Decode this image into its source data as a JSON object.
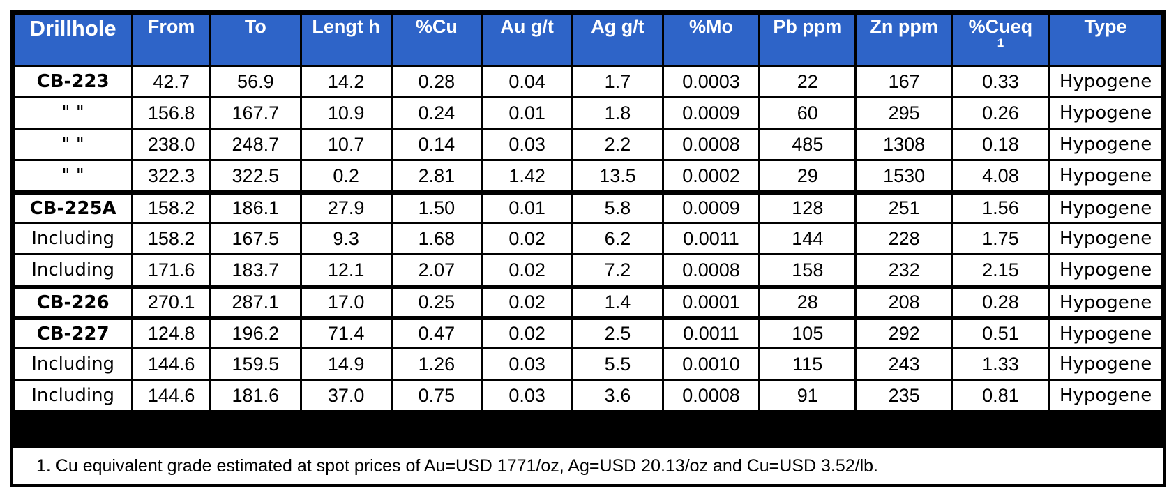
{
  "table": {
    "headers": [
      {
        "label": "Drillhole",
        "sup": ""
      },
      {
        "label": "From",
        "sup": ""
      },
      {
        "label": "To",
        "sup": ""
      },
      {
        "label": "Lengt h",
        "sup": ""
      },
      {
        "label": "%Cu",
        "sup": ""
      },
      {
        "label": "Au g/t",
        "sup": ""
      },
      {
        "label": "Ag g/t",
        "sup": ""
      },
      {
        "label": "%Mo",
        "sup": ""
      },
      {
        "label": "Pb ppm",
        "sup": ""
      },
      {
        "label": "Zn ppm",
        "sup": ""
      },
      {
        "label": "%Cueq",
        "sup": "1"
      },
      {
        "label": "Type",
        "sup": ""
      }
    ],
    "rows": [
      {
        "hole": "CB-223",
        "bold": true,
        "cells": [
          "42.7",
          "56.9",
          "14.2",
          "0.28",
          "0.04",
          "1.7",
          "0.0003",
          "22",
          "167",
          "0.33",
          "Hypogene"
        ]
      },
      {
        "hole": "\" \"",
        "bold": false,
        "cells": [
          "156.8",
          "167.7",
          "10.9",
          "0.24",
          "0.01",
          "1.8",
          "0.0009",
          "60",
          "295",
          "0.26",
          "Hypogene"
        ]
      },
      {
        "hole": "\" \"",
        "bold": false,
        "cells": [
          "238.0",
          "248.7",
          "10.7",
          "0.14",
          "0.03",
          "2.2",
          "0.0008",
          "485",
          "1308",
          "0.18",
          "Hypogene"
        ]
      },
      {
        "hole": "\" \"",
        "bold": false,
        "cells": [
          "322.3",
          "322.5",
          "0.2",
          "2.81",
          "1.42",
          "13.5",
          "0.0002",
          "29",
          "1530",
          "4.08",
          "Hypogene"
        ]
      },
      {
        "hole": "CB-225A",
        "bold": true,
        "cells": [
          "158.2",
          "186.1",
          "27.9",
          "1.50",
          "0.01",
          "5.8",
          "0.0009",
          "128",
          "251",
          "1.56",
          "Hypogene"
        ]
      },
      {
        "hole": "Including",
        "bold": false,
        "cells": [
          "158.2",
          "167.5",
          "9.3",
          "1.68",
          "0.02",
          "6.2",
          "0.0011",
          "144",
          "228",
          "1.75",
          "Hypogene"
        ]
      },
      {
        "hole": "Including",
        "bold": false,
        "cells": [
          "171.6",
          "183.7",
          "12.1",
          "2.07",
          "0.02",
          "7.2",
          "0.0008",
          "158",
          "232",
          "2.15",
          "Hypogene"
        ]
      },
      {
        "hole": "CB-226",
        "bold": true,
        "cells": [
          "270.1",
          "287.1",
          "17.0",
          "0.25",
          "0.02",
          "1.4",
          "0.0001",
          "28",
          "208",
          "0.28",
          "Hypogene"
        ]
      },
      {
        "hole": "CB-227",
        "bold": true,
        "cells": [
          "124.8",
          "196.2",
          "71.4",
          "0.47",
          "0.02",
          "2.5",
          "0.0011",
          "105",
          "292",
          "0.51",
          "Hypogene"
        ]
      },
      {
        "hole": "Including",
        "bold": false,
        "cells": [
          "144.6",
          "159.5",
          "14.9",
          "1.26",
          "0.03",
          "5.5",
          "0.0010",
          "115",
          "243",
          "1.33",
          "Hypogene"
        ]
      },
      {
        "hole": "Including",
        "bold": false,
        "cells": [
          "144.6",
          "181.6",
          "37.0",
          "0.75",
          "0.03",
          "3.6",
          "0.0008",
          "91",
          "235",
          "0.81",
          "Hypogene"
        ]
      }
    ],
    "footnote": "1.  Cu equivalent grade estimated at spot prices of Au=USD 1771/oz, Ag=USD 20.13/oz and Cu=USD 3.52/lb."
  },
  "colors": {
    "header_bg": "#2e64c8",
    "header_text": "#ffffff",
    "grid": "#000000"
  }
}
